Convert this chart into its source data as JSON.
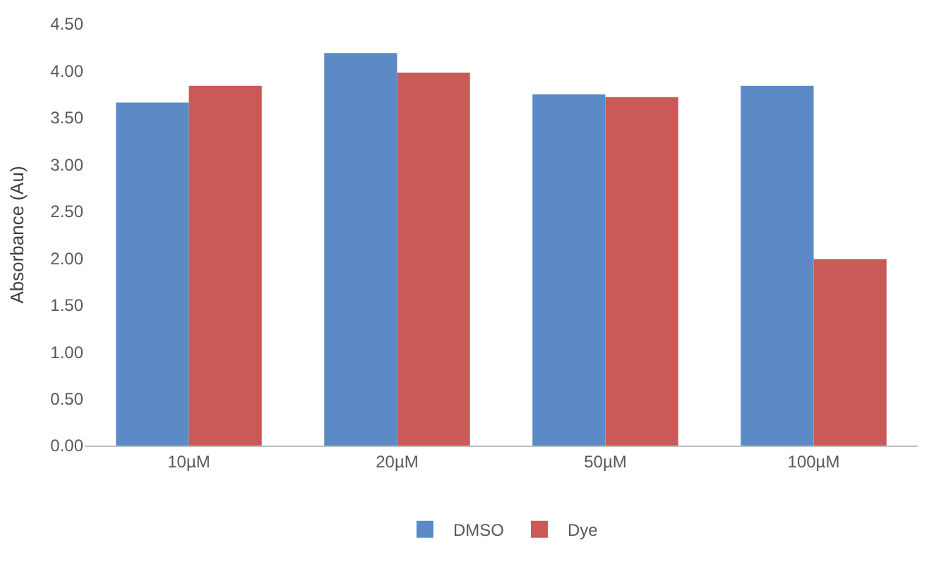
{
  "chart_data": {
    "type": "bar",
    "ylabel": "Absorbance (Au)",
    "categories": [
      "10µM",
      "20µM",
      "50µM",
      "100µM"
    ],
    "series": [
      {
        "name": "DMSO",
        "color": "#5b8ac6",
        "values": [
          3.66,
          4.19,
          3.75,
          3.84
        ]
      },
      {
        "name": "Dye",
        "color": "#c95a57",
        "values": [
          3.84,
          3.98,
          3.72,
          1.99
        ]
      }
    ],
    "ylim": [
      0,
      4.5
    ],
    "yticks": [
      {
        "value": 0,
        "label": "0.00"
      },
      {
        "value": 0.5,
        "label": "0.50"
      },
      {
        "value": 1,
        "label": "1.00"
      },
      {
        "value": 1.5,
        "label": "1.50"
      },
      {
        "value": 2,
        "label": "2.00"
      },
      {
        "value": 2.5,
        "label": "2.50"
      },
      {
        "value": 3,
        "label": "3.00"
      },
      {
        "value": 3.5,
        "label": "3.50"
      },
      {
        "value": 4,
        "label": "4.00"
      },
      {
        "value": 4.5,
        "label": "4.50"
      }
    ],
    "grid": false,
    "legend": "bottom"
  }
}
